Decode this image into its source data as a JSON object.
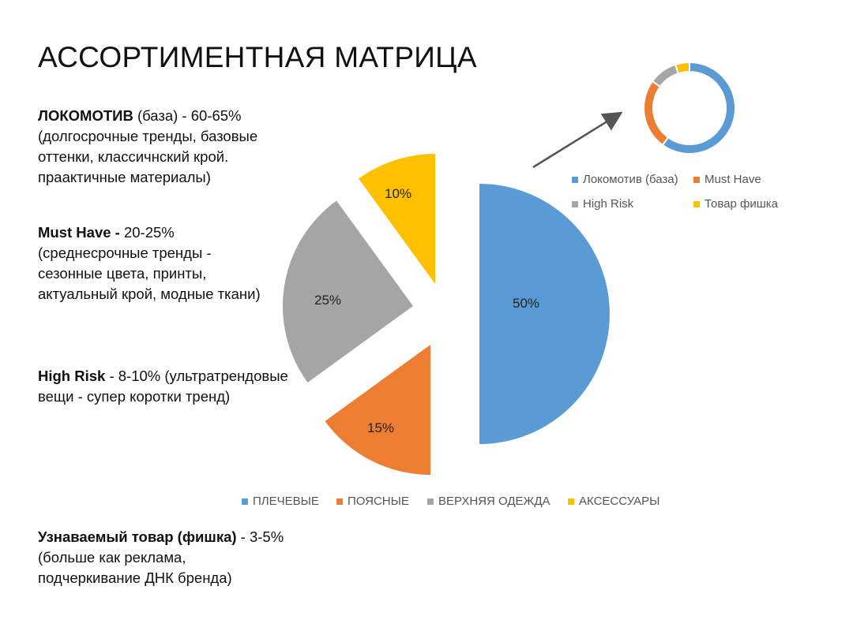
{
  "title": "АССОРТИМЕНТНАЯ МАТРИЦА",
  "blocks": [
    {
      "bold": "ЛОКОМОТИВ",
      "rest": " (база) - 60-65%",
      "lines": [
        "(долгосрочные тренды, базовые",
        "оттенки, классичнский крой.",
        "праактичные материалы)"
      ]
    },
    {
      "bold": "Must Have -",
      "rest": " 20-25%",
      "lines": [
        "(среднесрочные тренды -",
        "сезонные цвета, принты,",
        "актуальный крой, модные ткани)"
      ]
    },
    {
      "bold": "High Risk",
      "rest": " - 8-10% (ультратрендовые",
      "lines": [
        "вещи - супер коротки тренд)"
      ]
    },
    {
      "bold": "Узнаваемый товар (фишка)",
      "rest": " - 3-5%",
      "lines": [
        "(больше как реклама,",
        "подчеркивание ДНК бренда)"
      ]
    }
  ],
  "chart_data": [
    {
      "type": "pie",
      "exploded": true,
      "categories": [
        "ПЛЕЧЕВЫЕ",
        "ПОЯСНЫЕ",
        "ВЕРХНЯЯ ОДЕЖДА",
        "АКСЕССУАРЫ"
      ],
      "values": [
        50,
        15,
        25,
        10
      ],
      "data_labels": [
        "50%",
        "15%",
        "25%",
        "10%"
      ],
      "colors": [
        "#5B9BD5",
        "#ED7D31",
        "#A5A5A5",
        "#FFC000"
      ],
      "legend": "bottom"
    },
    {
      "type": "donut",
      "categories": [
        "Локомотив (база)",
        "Must Have",
        "High Risk",
        "Товар фишка"
      ],
      "values": [
        60,
        25,
        10,
        5
      ],
      "colors": [
        "#5B9BD5",
        "#ED7D31",
        "#A5A5A5",
        "#FFC000"
      ],
      "legend": "bottom"
    }
  ]
}
